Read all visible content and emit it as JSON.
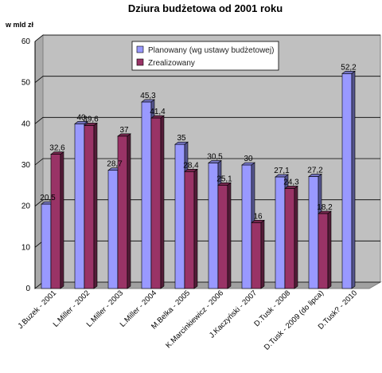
{
  "chart_data": {
    "type": "bar",
    "title": "Dziura budżetowa od 2001 roku",
    "ylabel": "w mld zł",
    "xlabel": "",
    "ylim": [
      0,
      60
    ],
    "yticks": [
      0,
      10,
      20,
      30,
      40,
      50,
      60
    ],
    "grid": true,
    "legend_position": "top-right",
    "categories": [
      "J.Buzek - 2001",
      "L.Miller - 2002",
      "L.Miller - 2003",
      "L.Miller - 2004",
      "M.Belka - 2005",
      "K.Marcinkiewicz - 2006",
      "J.Kaczyński - 2007",
      "D.Tusk - 2008",
      "D.Tusk - 2009 (do lipca)",
      "D.Tusk? - 2010"
    ],
    "series": [
      {
        "name": "Planowany (wg ustawy budżetowej)",
        "color": "#9999ff",
        "values": [
          20.5,
          40,
          28.7,
          45.3,
          35,
          30.5,
          30,
          27.1,
          27.2,
          52.2
        ],
        "labels": [
          "20,5",
          "40",
          "28,7",
          "45,3",
          "35",
          "30,5",
          "30",
          "27,1",
          "27,2",
          "52,2"
        ]
      },
      {
        "name": "Zrealizowany",
        "color": "#993366",
        "values": [
          32.6,
          39.6,
          37,
          41.4,
          28.4,
          25.1,
          16,
          24.3,
          18.2,
          null
        ],
        "labels": [
          "32,6",
          "39,6",
          "37",
          "41,4",
          "28,4",
          "25,1",
          "16",
          "24,3",
          "18,2",
          null
        ]
      }
    ]
  }
}
